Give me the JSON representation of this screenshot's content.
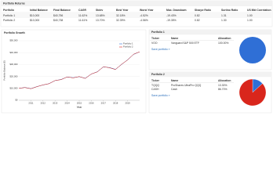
{
  "header": {
    "title": "Portfolio Returns"
  },
  "table": {
    "columns": [
      "Portfolio",
      "Initial Balance",
      "Final Balance",
      "CAGR",
      "Stdev",
      "Best Year",
      "Worst Year",
      "Max. Drawdown",
      "Sharpe Ratio",
      "Sortino Ratio",
      "US Mkt Correlation"
    ],
    "rows": [
      [
        "Portfolio 1",
        "$10,000",
        "$40,756",
        "11.62%",
        "13.68%",
        "32.18%",
        "-4.52%",
        "-19.43%",
        "0.82",
        "1.31",
        "1.00"
      ],
      [
        "Portfolio 2",
        "$10,000",
        "$40,738",
        "11.61%",
        "13.70%",
        "32.39%",
        "-4.56%",
        "-19.35%",
        "0.82",
        "1.30",
        "1.00"
      ]
    ]
  },
  "chart_data": {
    "type": "line",
    "title": "Portfolio Growth",
    "x_label": "Year",
    "y_label": "Portfolio Balance ($)",
    "x": [
      2010,
      2010.5,
      2011,
      2011.5,
      2012,
      2012.5,
      2013,
      2013.5,
      2014,
      2014.5,
      2015,
      2015.5,
      2016,
      2016.5,
      2017,
      2017.5,
      2018,
      2018.5,
      2019,
      2019.5,
      2020
    ],
    "xlim": [
      2010,
      2020
    ],
    "xticks": [
      2011,
      2012,
      2013,
      2014,
      2015,
      2016,
      2017,
      2018,
      2019
    ],
    "ylim": [
      0,
      50000
    ],
    "yticks": [
      {
        "value": 0,
        "label": "$0"
      },
      {
        "value": 10000,
        "label": "$10,000"
      },
      {
        "value": 20000,
        "label": "$20,000"
      },
      {
        "value": 30000,
        "label": "$30,000"
      },
      {
        "value": 40000,
        "label": "$40,000"
      },
      {
        "value": 50000,
        "label": "$50,000"
      }
    ],
    "legend": "upper-right",
    "series": [
      {
        "name": "Portfolio 1",
        "color": "#2f6fd6",
        "values": [
          10000,
          10800,
          9800,
          11500,
          12800,
          14000,
          16500,
          17500,
          19500,
          19000,
          19800,
          18500,
          22000,
          24000,
          28000,
          27500,
          26000,
          30000,
          34000,
          38500,
          40700
        ]
      },
      {
        "name": "Portfolio 2",
        "color": "#d9261c",
        "values": [
          10000,
          10700,
          9700,
          11400,
          12900,
          13900,
          16600,
          17300,
          19600,
          18800,
          19900,
          18300,
          22100,
          23800,
          28200,
          27300,
          25800,
          30200,
          33800,
          38700,
          40700
        ]
      }
    ]
  },
  "portfolios": [
    {
      "title": "Portfolio 1",
      "columns": [
        "Ticker",
        "Name",
        "Allocation"
      ],
      "rows": [
        [
          "VOO",
          "Vanguard S&P 500 ETF",
          "100.00%"
        ]
      ],
      "link": "Save portfolio »",
      "pie": {
        "values": [
          100
        ],
        "colors": [
          "#2f6fd6"
        ]
      }
    },
    {
      "title": "Portfolio 2",
      "columns": [
        "Ticker",
        "Name",
        "Allocation"
      ],
      "rows": [
        [
          "TQQQ",
          "ProShares UltraPro QQQ",
          "13.30%"
        ],
        [
          "CASH",
          "Cash",
          "86.70%"
        ]
      ],
      "link": "Save portfolio »",
      "pie": {
        "values": [
          13.3,
          86.7
        ],
        "colors": [
          "#2f6fd6",
          "#d9261c"
        ]
      }
    }
  ]
}
